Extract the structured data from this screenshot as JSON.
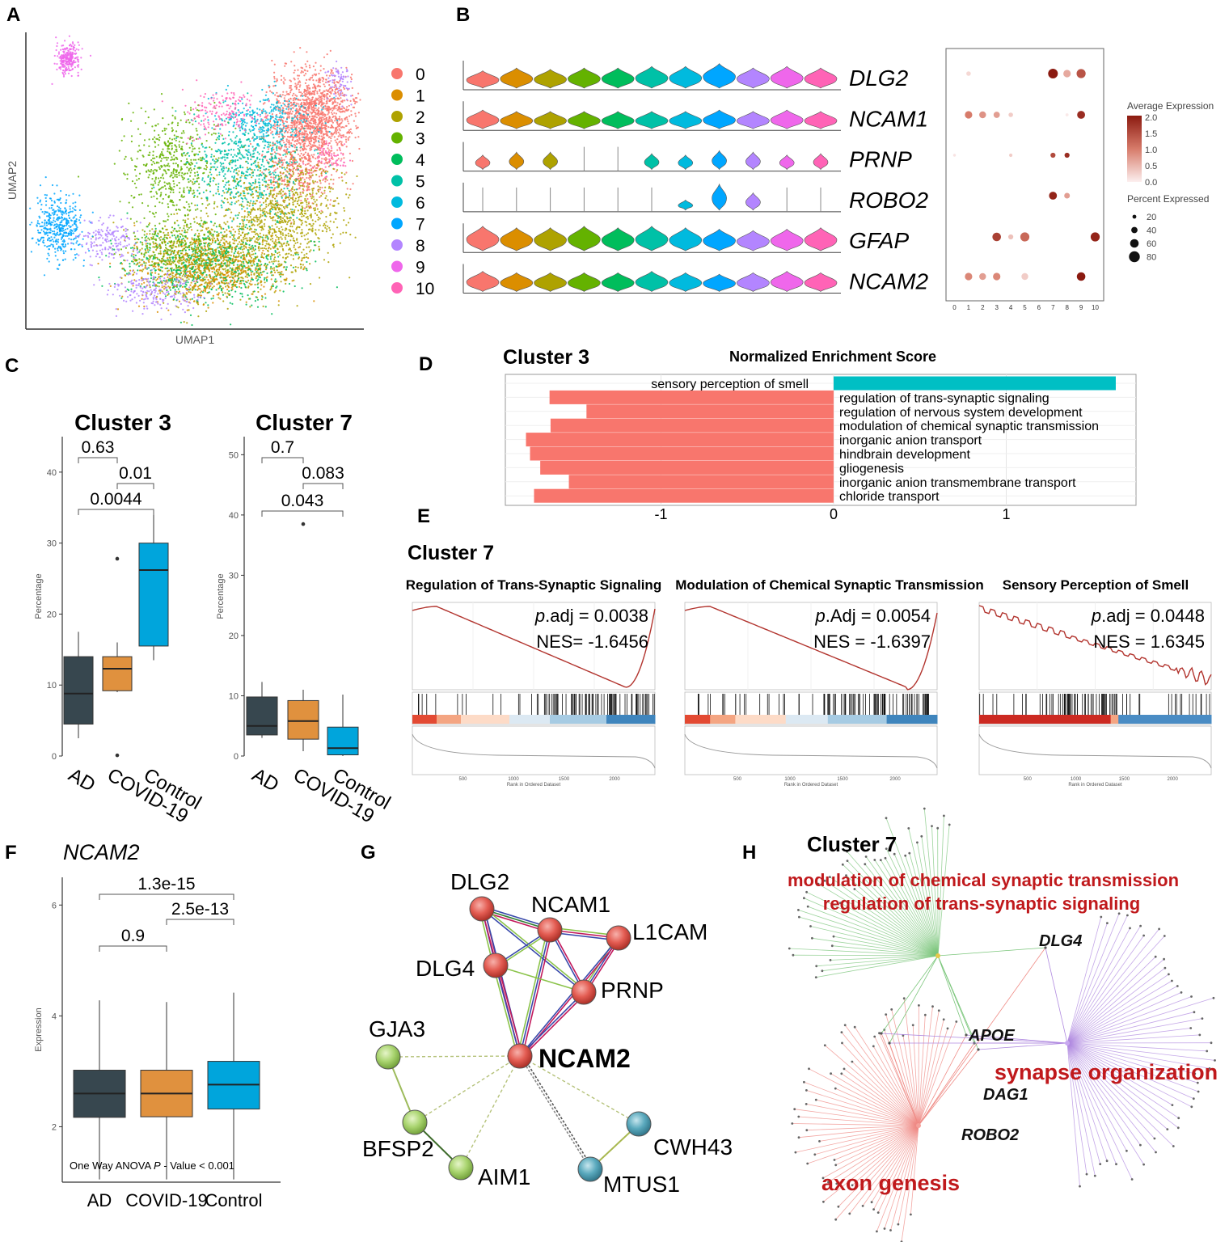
{
  "panel_labels": [
    "A",
    "B",
    "C",
    "D",
    "E",
    "F",
    "G",
    "H"
  ],
  "palette": [
    "#F8766D",
    "#DB8E00",
    "#AEA200",
    "#64B200",
    "#00BD5C",
    "#00C1A7",
    "#00BADE",
    "#00A6FF",
    "#B385FF",
    "#EF67EB",
    "#FF63B6"
  ],
  "box_colors": {
    "AD": "#37474F",
    "COVID-19": "#E0913E",
    "Control": "#00A5DC"
  },
  "chart_data": [
    {
      "id": "A",
      "type": "scatter",
      "xlabel": "UMAP1",
      "ylabel": "UMAP2",
      "clusters": [
        "0",
        "1",
        "2",
        "3",
        "4",
        "5",
        "6",
        "7",
        "8",
        "9",
        "10"
      ],
      "regions": [
        {
          "c": 9,
          "x": 1.1,
          "y": 9.1,
          "sx": 0.18,
          "sy": 0.25,
          "n": 260
        },
        {
          "c": 0,
          "x": 8.7,
          "y": 7.2,
          "sx": 0.65,
          "sy": 0.75,
          "n": 1300
        },
        {
          "c": 0,
          "x": 8.3,
          "y": 5.5,
          "sx": 0.55,
          "sy": 0.7,
          "n": 500
        },
        {
          "c": 2,
          "x": 7.6,
          "y": 3.8,
          "sx": 0.9,
          "sy": 0.9,
          "n": 900
        },
        {
          "c": 2,
          "x": 5.7,
          "y": 2.2,
          "sx": 1.2,
          "sy": 0.65,
          "n": 900
        },
        {
          "c": 4,
          "x": 5.4,
          "y": 2.0,
          "sx": 1.3,
          "sy": 0.65,
          "n": 650
        },
        {
          "c": 1,
          "x": 5.2,
          "y": 1.9,
          "sx": 1.15,
          "sy": 0.6,
          "n": 550
        },
        {
          "c": 3,
          "x": 4.4,
          "y": 5.4,
          "sx": 0.7,
          "sy": 0.9,
          "n": 550
        },
        {
          "c": 5,
          "x": 6.6,
          "y": 5.4,
          "sx": 0.85,
          "sy": 0.8,
          "n": 550
        },
        {
          "c": 6,
          "x": 7.1,
          "y": 7.0,
          "sx": 0.7,
          "sy": 0.5,
          "n": 300
        },
        {
          "c": 10,
          "x": 5.9,
          "y": 7.3,
          "sx": 0.6,
          "sy": 0.4,
          "n": 170
        },
        {
          "c": 10,
          "x": 9.2,
          "y": 5.6,
          "sx": 0.25,
          "sy": 0.3,
          "n": 60
        },
        {
          "c": 7,
          "x": 0.8,
          "y": 3.3,
          "sx": 0.38,
          "sy": 0.55,
          "n": 420
        },
        {
          "c": 8,
          "x": 2.4,
          "y": 2.8,
          "sx": 0.45,
          "sy": 0.4,
          "n": 180
        },
        {
          "c": 8,
          "x": 3.7,
          "y": 1.1,
          "sx": 0.7,
          "sy": 0.35,
          "n": 200
        },
        {
          "c": 8,
          "x": 9.5,
          "y": 8.2,
          "sx": 0.2,
          "sy": 0.3,
          "n": 70
        },
        {
          "c": 3,
          "x": 4.3,
          "y": 2.6,
          "sx": 0.7,
          "sy": 0.5,
          "n": 200
        }
      ]
    },
    {
      "id": "B-violin",
      "type": "violin",
      "genes": [
        "DLG2",
        "NCAM1",
        "PRNP",
        "ROBO2",
        "GFAP",
        "NCAM2"
      ],
      "clusters": [
        "0",
        "1",
        "2",
        "3",
        "4",
        "5",
        "6",
        "7",
        "8",
        "9",
        "10"
      ],
      "max_expression": [
        [
          0.6,
          0.7,
          0.65,
          0.7,
          0.7,
          0.75,
          0.75,
          0.85,
          0.7,
          0.75,
          0.7
        ],
        [
          0.65,
          0.6,
          0.6,
          0.6,
          0.6,
          0.6,
          0.6,
          0.65,
          0.6,
          0.65,
          0.6
        ],
        [
          0.5,
          0.6,
          0.6,
          0.0,
          0.0,
          0.55,
          0.5,
          0.65,
          0.6,
          0.5,
          0.55
        ],
        [
          0.0,
          0.0,
          0.0,
          0.0,
          0.0,
          0.0,
          0.35,
          0.9,
          0.6,
          0.0,
          0.0
        ],
        [
          0.85,
          0.8,
          0.8,
          0.85,
          0.8,
          0.85,
          0.8,
          0.75,
          0.7,
          0.75,
          0.8
        ],
        [
          0.7,
          0.65,
          0.65,
          0.65,
          0.65,
          0.7,
          0.65,
          0.6,
          0.65,
          0.7,
          0.65
        ]
      ]
    },
    {
      "id": "B-dot",
      "type": "scatter",
      "x_ticks": [
        "0",
        "1",
        "2",
        "3",
        "4",
        "5",
        "6",
        "7",
        "8",
        "9",
        "10"
      ],
      "avg_legend_title": "Average Expression",
      "avg_ticks": [
        "2.0",
        "1.5",
        "1.0",
        "0.5",
        "0.0"
      ],
      "pct_legend_title": "Percent Expressed",
      "pct_ticks": [
        "20",
        "40",
        "60",
        "80"
      ],
      "dots": [
        {
          "g": 0,
          "c": 1,
          "avg": 0.2,
          "pct": 25
        },
        {
          "g": 0,
          "c": 7,
          "avg": 2.0,
          "pct": 70
        },
        {
          "g": 0,
          "c": 8,
          "avg": 0.6,
          "pct": 50
        },
        {
          "g": 0,
          "c": 9,
          "avg": 1.4,
          "pct": 65
        },
        {
          "g": 1,
          "c": 1,
          "avg": 1.0,
          "pct": 50
        },
        {
          "g": 1,
          "c": 2,
          "avg": 0.8,
          "pct": 45
        },
        {
          "g": 1,
          "c": 3,
          "avg": 0.7,
          "pct": 40
        },
        {
          "g": 1,
          "c": 4,
          "avg": 0.3,
          "pct": 25
        },
        {
          "g": 1,
          "c": 8,
          "avg": 0.05,
          "pct": 12
        },
        {
          "g": 1,
          "c": 9,
          "avg": 1.8,
          "pct": 55
        },
        {
          "g": 2,
          "c": 0,
          "avg": 0.1,
          "pct": 10
        },
        {
          "g": 2,
          "c": 4,
          "avg": 0.3,
          "pct": 15
        },
        {
          "g": 2,
          "c": 7,
          "avg": 1.5,
          "pct": 30
        },
        {
          "g": 2,
          "c": 8,
          "avg": 1.8,
          "pct": 30
        },
        {
          "g": 3,
          "c": 7,
          "avg": 1.9,
          "pct": 55
        },
        {
          "g": 3,
          "c": 8,
          "avg": 0.7,
          "pct": 35
        },
        {
          "g": 4,
          "c": 3,
          "avg": 1.6,
          "pct": 60
        },
        {
          "g": 4,
          "c": 4,
          "avg": 0.4,
          "pct": 30
        },
        {
          "g": 4,
          "c": 5,
          "avg": 1.2,
          "pct": 65
        },
        {
          "g": 4,
          "c": 10,
          "avg": 1.9,
          "pct": 65
        },
        {
          "g": 5,
          "c": 1,
          "avg": 0.9,
          "pct": 50
        },
        {
          "g": 5,
          "c": 2,
          "avg": 0.7,
          "pct": 45
        },
        {
          "g": 5,
          "c": 3,
          "avg": 0.9,
          "pct": 50
        },
        {
          "g": 5,
          "c": 5,
          "avg": 0.3,
          "pct": 45
        },
        {
          "g": 5,
          "c": 9,
          "avg": 2.0,
          "pct": 60
        }
      ]
    },
    {
      "id": "C-3",
      "type": "box",
      "title": "Cluster 3",
      "ylabel": "Percentage",
      "ylim": [
        0,
        45
      ],
      "yticks": [
        0,
        10,
        20,
        30,
        40
      ],
      "categories": [
        "AD",
        "COVID-19",
        "Control"
      ],
      "boxes": [
        {
          "min": 2.5,
          "q1": 4.5,
          "median": 8.8,
          "q3": 14,
          "max": 17.5,
          "outliers": []
        },
        {
          "min": 9,
          "q1": 9.2,
          "median": 12.3,
          "q3": 14,
          "max": 16,
          "outliers": [
            0.1,
            27.8
          ]
        },
        {
          "min": 13.5,
          "q1": 15.5,
          "median": 26.2,
          "q3": 30,
          "max": 34.7,
          "outliers": []
        }
      ],
      "pvalues": [
        {
          "pair": [
            0,
            1
          ],
          "label": "0.63"
        },
        {
          "pair": [
            1,
            2
          ],
          "label": "0.01"
        },
        {
          "pair": [
            0,
            2
          ],
          "label": "0.0044"
        }
      ]
    },
    {
      "id": "C-7",
      "type": "box",
      "title": "Cluster 7",
      "ylabel": "Percentage",
      "ylim": [
        0,
        53
      ],
      "yticks": [
        0,
        10,
        20,
        30,
        40,
        50
      ],
      "categories": [
        "AD",
        "COVID-19",
        "Control"
      ],
      "boxes": [
        {
          "min": 3,
          "q1": 3.5,
          "median": 5,
          "q3": 9.8,
          "max": 12.3,
          "outliers": []
        },
        {
          "min": 0.8,
          "q1": 2.8,
          "median": 5.8,
          "q3": 9.2,
          "max": 11,
          "outliers": [
            38.5
          ]
        },
        {
          "min": 0,
          "q1": 0.2,
          "median": 1.3,
          "q3": 4.8,
          "max": 10.2,
          "outliers": []
        }
      ],
      "pvalues": [
        {
          "pair": [
            0,
            1
          ],
          "label": "0.7"
        },
        {
          "pair": [
            1,
            2
          ],
          "label": "0.083"
        },
        {
          "pair": [
            0,
            2
          ],
          "label": "0.043"
        }
      ]
    },
    {
      "id": "D",
      "type": "bar",
      "title": "Cluster 3",
      "xlabel": "Normalized Enrichment Score",
      "xlim": [
        -1.9,
        1.77
      ],
      "xticks": [
        -1,
        0,
        1
      ],
      "categories": [
        "sensory perception of smell",
        "regulation of trans-synaptic signaling",
        "regulation of nervous system development",
        "modulation of chemical synaptic transmission",
        "inorganic anion transport",
        "hindbrain development",
        "gliogenesis",
        "inorganic anion transmembrane transport",
        "chloride transport"
      ],
      "values": [
        1.6345,
        -1.6456,
        -1.4317,
        -1.6397,
        -1.7821,
        -1.7587,
        -1.6995,
        -1.5337,
        -1.7355
      ]
    },
    {
      "id": "E",
      "type": "line",
      "title": "Cluster 7",
      "xlabel": "Rank in Ordered Dataset",
      "xticks": [
        "500",
        "1000",
        "1500",
        "2000"
      ],
      "plots": [
        {
          "title": "Regulation of Trans-Synaptic Signaling",
          "padj_prefix": "p",
          "padj_suffix": ".adj = 0.0038",
          "nes": "NES= -1.6456"
        },
        {
          "title": "Modulation of Chemical Synaptic Transmission",
          "padj_prefix": "p",
          "padj_suffix": ".Adj = 0.0054",
          "nes": "NES = -1.6397"
        },
        {
          "title": "Sensory Perception of Smell",
          "padj_prefix": "p",
          "padj_suffix": ".adj = 0.0448",
          "nes": "NES = 1.6345"
        }
      ]
    },
    {
      "id": "F",
      "type": "box",
      "title": "NCAM2",
      "ylabel": "Expression",
      "ylim": [
        1,
        6.5
      ],
      "yticks": [
        2,
        4,
        6
      ],
      "categories": [
        "AD",
        "COVID-19",
        "Control"
      ],
      "boxes": [
        {
          "min": 1.05,
          "q1": 2.17,
          "median": 2.6,
          "q3": 3.02,
          "max": 4.28,
          "outliers": []
        },
        {
          "min": 1.05,
          "q1": 2.18,
          "median": 2.6,
          "q3": 3.02,
          "max": 4.25,
          "outliers": []
        },
        {
          "min": 1.05,
          "q1": 2.32,
          "median": 2.76,
          "q3": 3.18,
          "max": 4.42,
          "outliers": []
        }
      ],
      "pvalues": [
        {
          "pair": [
            0,
            1
          ],
          "label": "0.9"
        },
        {
          "pair": [
            1,
            2
          ],
          "label": "2.5e-13"
        },
        {
          "pair": [
            0,
            2
          ],
          "label": "1.3e-15"
        }
      ],
      "anova_pre": "One Way ANOVA ",
      "anova_p": "P",
      "anova_post": " - Value < 0.001"
    }
  ],
  "network_g": {
    "nodes": [
      {
        "id": "DLG2",
        "label": "DLG2",
        "group": "red"
      },
      {
        "id": "NCAM1",
        "label": "NCAM1",
        "group": "red"
      },
      {
        "id": "L1CAM",
        "label": "L1CAM",
        "group": "red"
      },
      {
        "id": "DLG4",
        "label": "DLG4",
        "group": "red"
      },
      {
        "id": "PRNP",
        "label": "PRNP",
        "group": "red"
      },
      {
        "id": "NCAM2",
        "label": "NCAM2",
        "group": "red"
      },
      {
        "id": "GJA3",
        "label": "GJA3",
        "group": "green"
      },
      {
        "id": "BFSP2",
        "label": "BFSP2",
        "group": "green"
      },
      {
        "id": "AIM1",
        "label": "AIM1",
        "group": "green"
      },
      {
        "id": "CWH43",
        "label": "CWH43",
        "group": "blue"
      },
      {
        "id": "MTUS1",
        "label": "MTUS1",
        "group": "blue"
      }
    ]
  },
  "network_h": {
    "title": "Cluster 7",
    "terms": [
      "modulation of chemical synaptic transmission",
      "regulation of trans-synaptic signaling",
      "synapse organization",
      "axon genesis"
    ],
    "genes": [
      "DLG4",
      "APOE",
      "DAG1",
      "ROBO2"
    ]
  }
}
